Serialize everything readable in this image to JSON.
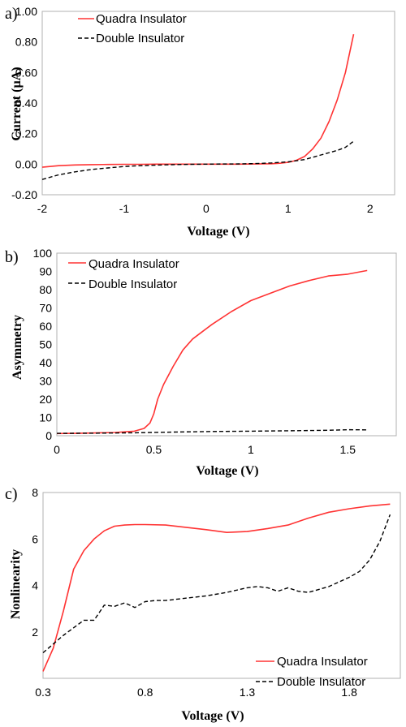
{
  "colors": {
    "quadra": "#ff3333",
    "double": "#000000"
  },
  "chart_data": [
    {
      "type": "line",
      "panel_label": "a)",
      "xlabel": "Voltage (V)",
      "ylabel": "Current (µA)",
      "xlim": [
        -2,
        2.3
      ],
      "ylim": [
        -0.2,
        1.0
      ],
      "xticks": [
        -2,
        -1,
        0,
        1,
        2
      ],
      "xtick_labels": [
        "-2",
        "-1",
        "0",
        "1",
        "2"
      ],
      "yticks": [
        -0.2,
        0,
        0.2,
        0.4,
        0.6,
        0.8,
        1.0
      ],
      "ytick_labels": [
        "-0.20",
        "0.00",
        "0.20",
        "0.40",
        "0.60",
        "0.80",
        "1.00"
      ],
      "grid": false,
      "legend_position": "top-left",
      "series": [
        {
          "name": "Quadra Insulator",
          "style": "solid",
          "x": [
            -2,
            -1.8,
            -1.6,
            -1.4,
            -1.2,
            -1.0,
            -0.8,
            -0.6,
            -0.4,
            -0.2,
            0,
            0.2,
            0.4,
            0.6,
            0.8,
            0.9,
            1.0,
            1.1,
            1.2,
            1.3,
            1.4,
            1.5,
            1.6,
            1.7,
            1.8
          ],
          "y": [
            -0.02,
            -0.01,
            -0.005,
            -0.003,
            -0.002,
            -0.001,
            -0.001,
            0,
            0,
            0,
            0,
            0,
            0,
            0.001,
            0.003,
            0.006,
            0.012,
            0.025,
            0.05,
            0.1,
            0.17,
            0.28,
            0.42,
            0.6,
            0.85
          ]
        },
        {
          "name": "Double Insulator",
          "style": "dashed",
          "x": [
            -2,
            -1.9,
            -1.8,
            -1.6,
            -1.4,
            -1.2,
            -1.0,
            -0.8,
            -0.6,
            -0.4,
            -0.2,
            0,
            0.2,
            0.4,
            0.6,
            0.8,
            1.0,
            1.2,
            1.4,
            1.6,
            1.7,
            1.8
          ],
          "y": [
            -0.1,
            -0.085,
            -0.07,
            -0.05,
            -0.035,
            -0.025,
            -0.015,
            -0.01,
            -0.006,
            -0.003,
            -0.001,
            0,
            0.001,
            0.002,
            0.004,
            0.008,
            0.015,
            0.03,
            0.06,
            0.09,
            0.11,
            0.15
          ]
        }
      ]
    },
    {
      "type": "line",
      "panel_label": "b)",
      "xlabel": "Voltage (V)",
      "ylabel": "Asymmetry",
      "xlim": [
        0,
        1.75
      ],
      "ylim": [
        0,
        100
      ],
      "xticks": [
        0,
        0.5,
        1,
        1.5
      ],
      "xtick_labels": [
        "0",
        "0.5",
        "1",
        "1.5"
      ],
      "yticks": [
        0,
        10,
        20,
        30,
        40,
        50,
        60,
        70,
        80,
        90,
        100
      ],
      "ytick_labels": [
        "0",
        "10",
        "20",
        "30",
        "40",
        "50",
        "60",
        "70",
        "80",
        "90",
        "100"
      ],
      "grid": false,
      "legend_position": "top-left",
      "series": [
        {
          "name": "Quadra Insulator",
          "style": "solid",
          "x": [
            0,
            0.1,
            0.2,
            0.3,
            0.4,
            0.45,
            0.48,
            0.5,
            0.52,
            0.55,
            0.6,
            0.65,
            0.7,
            0.75,
            0.8,
            0.9,
            1.0,
            1.1,
            1.2,
            1.3,
            1.4,
            1.5,
            1.6
          ],
          "y": [
            1.2,
            1.3,
            1.5,
            1.8,
            2.5,
            4,
            7,
            12,
            20,
            28,
            38,
            47,
            53,
            57,
            61,
            68,
            74,
            78,
            82,
            85,
            87.5,
            88.5,
            90.5
          ]
        },
        {
          "name": "Double Insulator",
          "style": "dashed",
          "x": [
            0,
            0.2,
            0.4,
            0.6,
            0.8,
            1.0,
            1.2,
            1.4,
            1.5,
            1.6
          ],
          "y": [
            1.3,
            1.4,
            1.6,
            2.0,
            2.3,
            2.5,
            2.7,
            3.0,
            3.3,
            3.2
          ]
        }
      ]
    },
    {
      "type": "line",
      "panel_label": "c)",
      "xlabel": "Voltage (V)",
      "ylabel": "Nonlinearity",
      "xlim": [
        0.3,
        2.05
      ],
      "ylim": [
        0,
        8
      ],
      "xticks": [
        0.3,
        0.8,
        1.3,
        1.8
      ],
      "xtick_labels": [
        "0.3",
        "0.8",
        "1.3",
        "1.8"
      ],
      "yticks": [
        2,
        4,
        6,
        8
      ],
      "ytick_labels": [
        "2",
        "4",
        "6",
        "8"
      ],
      "grid": false,
      "legend_position": "bottom-right",
      "series": [
        {
          "name": "Quadra Insulator",
          "style": "solid",
          "x": [
            0.3,
            0.35,
            0.4,
            0.45,
            0.5,
            0.55,
            0.6,
            0.65,
            0.7,
            0.75,
            0.8,
            0.9,
            1.0,
            1.1,
            1.2,
            1.3,
            1.4,
            1.5,
            1.6,
            1.7,
            1.8,
            1.9,
            2.0
          ],
          "y": [
            0.3,
            1.3,
            2.9,
            4.7,
            5.5,
            6.0,
            6.35,
            6.55,
            6.6,
            6.62,
            6.62,
            6.6,
            6.5,
            6.4,
            6.28,
            6.32,
            6.45,
            6.6,
            6.9,
            7.15,
            7.3,
            7.42,
            7.5
          ]
        },
        {
          "name": "Double Insulator",
          "style": "dashed",
          "x": [
            0.3,
            0.4,
            0.5,
            0.55,
            0.6,
            0.65,
            0.7,
            0.75,
            0.8,
            0.85,
            0.9,
            1.0,
            1.1,
            1.2,
            1.3,
            1.35,
            1.4,
            1.45,
            1.5,
            1.55,
            1.6,
            1.7,
            1.8,
            1.85,
            1.9,
            1.95,
            2.0
          ],
          "y": [
            1.1,
            1.85,
            2.5,
            2.5,
            3.15,
            3.1,
            3.25,
            3.05,
            3.3,
            3.35,
            3.35,
            3.45,
            3.55,
            3.7,
            3.9,
            3.95,
            3.9,
            3.75,
            3.9,
            3.75,
            3.7,
            3.95,
            4.35,
            4.6,
            5.1,
            5.9,
            7.05
          ]
        }
      ]
    }
  ]
}
